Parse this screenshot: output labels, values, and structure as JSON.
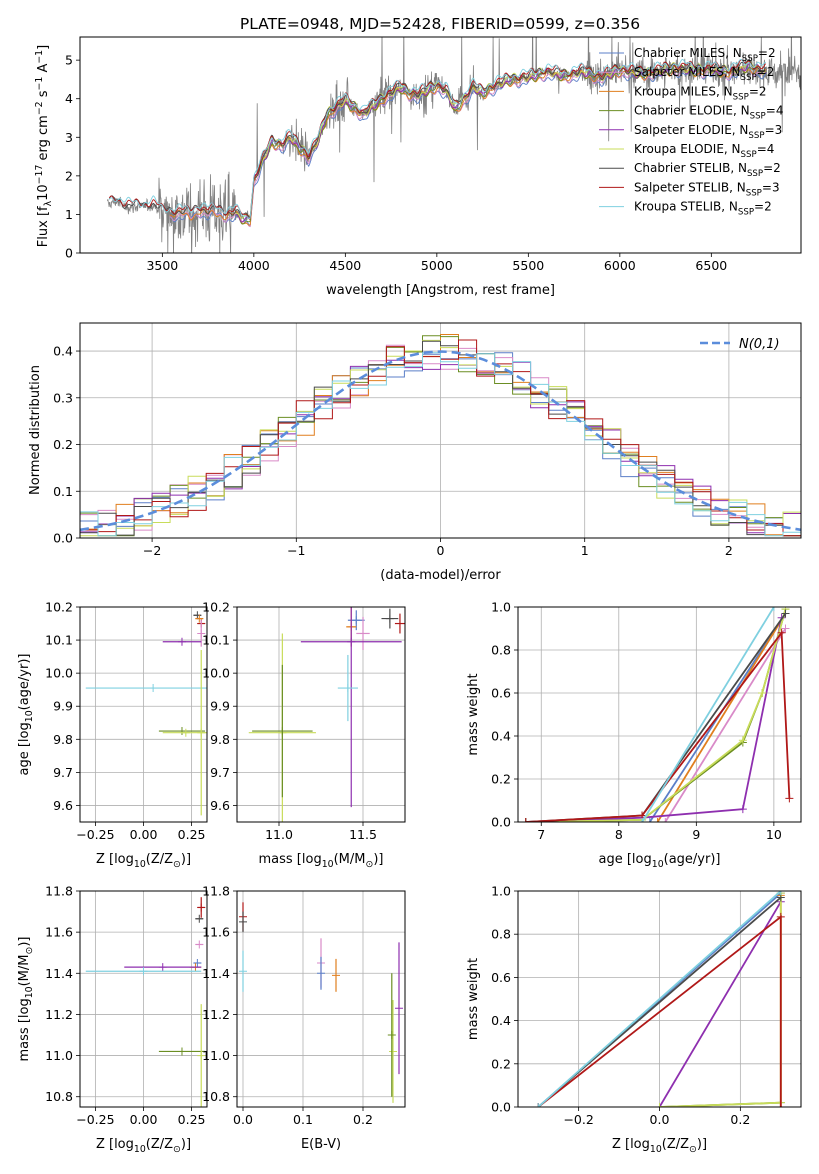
{
  "figure_title": "PLATE=0948, MJD=52428, FIBERID=0599, z=0.356",
  "colors": {
    "chabrier_miles": "#5b7fc8",
    "salpeter_miles": "#d98ac8",
    "kroupa_miles": "#e07f1f",
    "chabrier_elodie": "#6b8e23",
    "salpeter_elodie": "#8e2faf",
    "kroupa_elodie": "#c8dc5a",
    "chabrier_stelib": "#4a4a4a",
    "salpeter_stelib": "#b01818",
    "kroupa_stelib": "#7fd0e0",
    "normal_curve": "#5b8ddb",
    "data": "#808080"
  },
  "chart_data": [
    {
      "type": "line",
      "xlabel": "wavelength [Angstrom, rest frame]",
      "ylabel": "Flux [f_λ 10^-17 erg cm^-2 s^-1 A^-1]",
      "xlim": [
        3050,
        6990
      ],
      "ylim": [
        0,
        5.6
      ],
      "xticks": [
        3500,
        4000,
        4500,
        5000,
        5500,
        6000,
        6500
      ],
      "yticks": [
        0,
        1,
        2,
        3,
        4,
        5
      ],
      "grid": false,
      "legend_position": "top-right",
      "legend": [
        {
          "label": "Chabrier MILES, N_SSP=2",
          "color_key": "chabrier_miles"
        },
        {
          "label": "Salpeter MILES, N_SSP=2",
          "color_key": "salpeter_miles"
        },
        {
          "label": "Kroupa MILES, N_SSP=2",
          "color_key": "kroupa_miles"
        },
        {
          "label": "Chabrier ELODIE, N_SSP=4",
          "color_key": "chabrier_elodie"
        },
        {
          "label": "Salpeter ELODIE, N_SSP=3",
          "color_key": "salpeter_elodie"
        },
        {
          "label": "Kroupa ELODIE, N_SSP=4",
          "color_key": "kroupa_elodie"
        },
        {
          "label": "Chabrier STELIB, N_SSP=2",
          "color_key": "chabrier_stelib"
        },
        {
          "label": "Salpeter STELIB, N_SSP=3",
          "color_key": "salpeter_stelib"
        },
        {
          "label": "Kroupa STELIB, N_SSP=2",
          "color_key": "kroupa_stelib"
        }
      ],
      "model_continuum": {
        "x": [
          3200,
          3250,
          3300,
          3400,
          3450,
          3500,
          3600,
          3650,
          3700,
          3750,
          3800,
          3850,
          3900,
          3950,
          3980,
          4000,
          4050,
          4100,
          4150,
          4200,
          4300,
          4350,
          4400,
          4500,
          4600,
          4700,
          4800,
          4850,
          4900,
          5000,
          5050,
          5100,
          5150,
          5200,
          5250,
          5300,
          5400,
          5500,
          5600,
          5700,
          5800,
          5900,
          6000,
          6100,
          6200,
          6300,
          6400,
          6500,
          6600,
          6700,
          6800
        ],
        "y": [
          1.25,
          1.35,
          1.2,
          1.2,
          1.25,
          1.05,
          1.05,
          1.0,
          1.15,
          1.05,
          1.1,
          1.0,
          1.05,
          0.85,
          0.9,
          1.85,
          2.4,
          2.9,
          2.8,
          3.0,
          2.5,
          2.9,
          3.6,
          3.95,
          3.6,
          4.0,
          4.3,
          4.15,
          4.1,
          4.35,
          4.2,
          3.75,
          4.0,
          4.3,
          4.15,
          4.3,
          4.5,
          4.55,
          4.7,
          4.6,
          4.7,
          4.55,
          4.75,
          4.65,
          4.7,
          4.8,
          4.75,
          4.75,
          4.7,
          4.85,
          4.7
        ]
      },
      "data_spectrum": {
        "x_range": [
          3200,
          6990
        ],
        "noise_note_color_key": "data"
      }
    },
    {
      "type": "line",
      "xlabel": "(data-model)/error",
      "ylabel": "Normed distribution",
      "xlim": [
        -2.5,
        2.5
      ],
      "ylim": [
        0,
        0.46
      ],
      "xticks": [
        -2,
        -1,
        0,
        1,
        2
      ],
      "yticks": [
        0.0,
        0.1,
        0.2,
        0.3,
        0.4
      ],
      "grid": true,
      "legend_position": "top-right",
      "legend": [
        {
          "label": "N(0,1)",
          "color_key": "normal_curve"
        }
      ],
      "normal_pdf": {
        "mean": 0,
        "sigma": 1
      }
    },
    {
      "type": "scatter",
      "xlabel": "Z [log10(Z/Z_sun)]",
      "ylabel": "age  [log10(age/yr)]",
      "xlim": [
        -0.33,
        0.33
      ],
      "ylim": [
        9.55,
        10.2
      ],
      "xticks": [
        -0.25,
        0.0,
        0.25
      ],
      "yticks": [
        9.6,
        9.7,
        9.8,
        9.9,
        10.0,
        10.1,
        10.2
      ],
      "grid": true,
      "points": [
        {
          "x": 0.28,
          "y": 10.175,
          "xerr": 0.02,
          "yerr": 0.0,
          "color_key": "chabrier_stelib"
        },
        {
          "x": 0.3,
          "y": 10.15,
          "xerr": 0.02,
          "yerr": 0.0,
          "color_key": "salpeter_stelib"
        },
        {
          "x": 0.29,
          "y": 10.165,
          "xerr": 0.02,
          "yerr": 0.0,
          "color_key": "kroupa_miles"
        },
        {
          "x": 0.3,
          "y": 10.12,
          "xerr": 0.0,
          "yerr": 0.04,
          "color_key": "salpeter_miles"
        },
        {
          "x": 0.2,
          "y": 10.095,
          "xerr": 0.1,
          "yerr": 0.0,
          "color_key": "salpeter_elodie"
        },
        {
          "x": 0.05,
          "y": 9.955,
          "xerr": 0.35,
          "yerr": 0.0,
          "color_key": "kroupa_stelib"
        },
        {
          "x": 0.2,
          "y": 9.825,
          "xerr": 0.12,
          "yerr": 0.0,
          "color_key": "chabrier_elodie"
        },
        {
          "x": 0.22,
          "y": 9.82,
          "xerr": 0.12,
          "yerr": 0.0,
          "color_key": "kroupa_elodie"
        },
        {
          "x": 0.3,
          "y": 9.82,
          "xerr": 0.0,
          "yerr": 0.25,
          "color_key": "kroupa_elodie"
        }
      ]
    },
    {
      "type": "scatter",
      "xlabel": "mass [log10(M/M_sun)]",
      "ylabel": "",
      "xlim": [
        10.75,
        11.75
      ],
      "ylim": [
        9.55,
        10.2
      ],
      "xticks": [
        11.0,
        11.5
      ],
      "yticks": [
        9.6,
        9.7,
        9.8,
        9.9,
        10.0,
        10.1,
        10.2
      ],
      "grid": true,
      "points": [
        {
          "x": 11.72,
          "y": 10.15,
          "xerr": 0.03,
          "yerr": 0.03,
          "color_key": "salpeter_stelib"
        },
        {
          "x": 11.66,
          "y": 10.165,
          "xerr": 0.05,
          "yerr": 0.03,
          "color_key": "chabrier_stelib"
        },
        {
          "x": 11.46,
          "y": 10.16,
          "xerr": 0.05,
          "yerr": 0.03,
          "color_key": "chabrier_miles"
        },
        {
          "x": 11.43,
          "y": 10.14,
          "xerr": 0.03,
          "yerr": 0.06,
          "color_key": "kroupa_miles"
        },
        {
          "x": 11.5,
          "y": 10.12,
          "xerr": 0.04,
          "yerr": 0.05,
          "color_key": "salpeter_miles"
        },
        {
          "x": 11.43,
          "y": 10.095,
          "xerr": 0.3,
          "yerr": 0.5,
          "color_key": "salpeter_elodie"
        },
        {
          "x": 11.41,
          "y": 9.955,
          "xerr": 0.06,
          "yerr": 0.1,
          "color_key": "kroupa_stelib"
        },
        {
          "x": 11.02,
          "y": 9.82,
          "xerr": 0.2,
          "yerr": 0.3,
          "color_key": "kroupa_elodie"
        },
        {
          "x": 11.02,
          "y": 9.825,
          "xerr": 0.18,
          "yerr": 0.2,
          "color_key": "chabrier_elodie"
        }
      ]
    },
    {
      "type": "line",
      "xlabel": "age  [log10(age/yr)]",
      "ylabel": "mass weight",
      "xlim": [
        6.7,
        10.35
      ],
      "ylim": [
        0,
        1.0
      ],
      "xticks": [
        7,
        8,
        9,
        10
      ],
      "yticks": [
        0.0,
        0.2,
        0.4,
        0.6,
        0.8,
        1.0
      ],
      "grid": true,
      "series": [
        {
          "color_key": "chabrier_miles",
          "x": [
            8.4,
            10.15
          ],
          "y": [
            0.0,
            0.97
          ]
        },
        {
          "color_key": "salpeter_miles",
          "x": [
            8.6,
            10.15
          ],
          "y": [
            0.0,
            0.9
          ]
        },
        {
          "color_key": "kroupa_miles",
          "x": [
            8.5,
            10.15
          ],
          "y": [
            0.0,
            0.97
          ]
        },
        {
          "color_key": "chabrier_elodie",
          "x": [
            6.8,
            8.3,
            9.6,
            9.85,
            10.15
          ],
          "y": [
            0.0,
            0.01,
            0.37,
            0.6,
            0.99
          ]
        },
        {
          "color_key": "salpeter_elodie",
          "x": [
            6.8,
            8.3,
            9.6,
            10.1
          ],
          "y": [
            0.0,
            0.02,
            0.06,
            0.95
          ]
        },
        {
          "color_key": "kroupa_elodie",
          "x": [
            6.8,
            8.3,
            9.6,
            9.85,
            10.15
          ],
          "y": [
            0.0,
            0.01,
            0.38,
            0.6,
            0.99
          ]
        },
        {
          "color_key": "chabrier_stelib",
          "x": [
            6.8,
            8.3,
            10.15
          ],
          "y": [
            0.0,
            0.03,
            0.97
          ]
        },
        {
          "color_key": "salpeter_stelib",
          "x": [
            6.8,
            8.3,
            10.1,
            10.2
          ],
          "y": [
            0.0,
            0.03,
            0.88,
            0.11
          ]
        },
        {
          "color_key": "kroupa_stelib",
          "x": [
            8.3,
            10.0
          ],
          "y": [
            0.0,
            1.0
          ]
        }
      ]
    },
    {
      "type": "scatter",
      "xlabel": "Z [log10(Z/Z_sun)]",
      "ylabel": "mass [log10(M/M_sun)]",
      "xlim": [
        -0.33,
        0.33
      ],
      "ylim": [
        10.75,
        11.8
      ],
      "xticks": [
        -0.25,
        0.0,
        0.25
      ],
      "yticks": [
        10.8,
        11.0,
        11.2,
        11.4,
        11.6,
        11.8
      ],
      "grid": true,
      "points": [
        {
          "x": 0.3,
          "y": 11.72,
          "xerr": 0.02,
          "yerr": 0.05,
          "color_key": "salpeter_stelib"
        },
        {
          "x": 0.29,
          "y": 11.665,
          "xerr": 0.02,
          "yerr": 0.0,
          "color_key": "chabrier_stelib"
        },
        {
          "x": 0.29,
          "y": 11.54,
          "xerr": 0.02,
          "yerr": 0.0,
          "color_key": "salpeter_miles"
        },
        {
          "x": 0.28,
          "y": 11.45,
          "xerr": 0.02,
          "yerr": 0.0,
          "color_key": "chabrier_miles"
        },
        {
          "x": 0.27,
          "y": 11.43,
          "xerr": 0.03,
          "yerr": 0.0,
          "color_key": "kroupa_miles"
        },
        {
          "x": 0.1,
          "y": 11.43,
          "xerr": 0.2,
          "yerr": 0.0,
          "color_key": "salpeter_elodie"
        },
        {
          "x": 0.0,
          "y": 11.41,
          "xerr": 0.3,
          "yerr": 0.0,
          "color_key": "kroupa_stelib"
        },
        {
          "x": 0.2,
          "y": 11.02,
          "xerr": 0.12,
          "yerr": 0.0,
          "color_key": "chabrier_elodie"
        },
        {
          "x": 0.3,
          "y": 11.0,
          "xerr": 0.0,
          "yerr": 0.25,
          "color_key": "kroupa_elodie"
        }
      ]
    },
    {
      "type": "scatter",
      "xlabel": "E(B-V)",
      "ylabel": "",
      "xlim": [
        -0.01,
        0.27
      ],
      "ylim": [
        10.75,
        11.8
      ],
      "xticks": [
        0.0,
        0.1,
        0.2
      ],
      "yticks": [
        10.8,
        11.0,
        11.2,
        11.4,
        11.6,
        11.8
      ],
      "grid": true,
      "points": [
        {
          "x": 0.0,
          "y": 11.675,
          "xerr": 0.0,
          "yerr": 0.07,
          "color_key": "salpeter_stelib"
        },
        {
          "x": 0.0,
          "y": 11.65,
          "xerr": 0.0,
          "yerr": 0.05,
          "color_key": "chabrier_stelib"
        },
        {
          "x": 0.0,
          "y": 11.41,
          "xerr": 0.0,
          "yerr": 0.1,
          "color_key": "kroupa_stelib"
        },
        {
          "x": 0.13,
          "y": 11.45,
          "xerr": 0.0,
          "yerr": 0.12,
          "color_key": "salpeter_miles"
        },
        {
          "x": 0.13,
          "y": 11.4,
          "xerr": 0.0,
          "yerr": 0.08,
          "color_key": "chabrier_miles"
        },
        {
          "x": 0.155,
          "y": 11.39,
          "xerr": 0.0,
          "yerr": 0.08,
          "color_key": "kroupa_miles"
        },
        {
          "x": 0.26,
          "y": 11.23,
          "xerr": 0.0,
          "yerr": 0.32,
          "color_key": "salpeter_elodie"
        },
        {
          "x": 0.25,
          "y": 11.02,
          "xerr": 0.0,
          "yerr": 0.25,
          "color_key": "kroupa_elodie"
        },
        {
          "x": 0.248,
          "y": 11.1,
          "xerr": 0.0,
          "yerr": 0.3,
          "color_key": "chabrier_elodie"
        }
      ]
    },
    {
      "type": "line",
      "xlabel": "Z [log10(Z/Z_sun)]",
      "ylabel": "mass weight",
      "xlim": [
        -0.35,
        0.35
      ],
      "ylim": [
        0,
        1.0
      ],
      "xticks": [
        -0.2,
        0.0,
        0.2
      ],
      "yticks": [
        0.0,
        0.2,
        0.4,
        0.6,
        0.8,
        1.0
      ],
      "grid": true,
      "series": [
        {
          "color_key": "chabrier_miles",
          "x": [
            -0.3,
            0.3
          ],
          "y": [
            0.0,
            0.99
          ]
        },
        {
          "color_key": "kroupa_miles",
          "x": [
            0.3,
            0.3
          ],
          "y": [
            0.0,
            0.98
          ]
        },
        {
          "color_key": "chabrier_elodie",
          "x": [
            0.0,
            0.3
          ],
          "y": [
            0.0,
            0.02
          ]
        },
        {
          "color_key": "salpeter_elodie",
          "x": [
            0.0,
            0.3
          ],
          "y": [
            0.0,
            0.95
          ]
        },
        {
          "color_key": "kroupa_elodie",
          "x": [
            0.0,
            0.3,
            0.3
          ],
          "y": [
            0.0,
            0.02,
            0.99
          ]
        },
        {
          "color_key": "chabrier_stelib",
          "x": [
            -0.3,
            0.3
          ],
          "y": [
            0.0,
            0.97
          ]
        },
        {
          "color_key": "salpeter_stelib",
          "x": [
            -0.3,
            0.3,
            0.3
          ],
          "y": [
            0.0,
            0.88,
            0.0
          ]
        },
        {
          "color_key": "kroupa_stelib",
          "x": [
            -0.3,
            0.3
          ],
          "y": [
            0.0,
            1.0
          ]
        }
      ]
    }
  ]
}
